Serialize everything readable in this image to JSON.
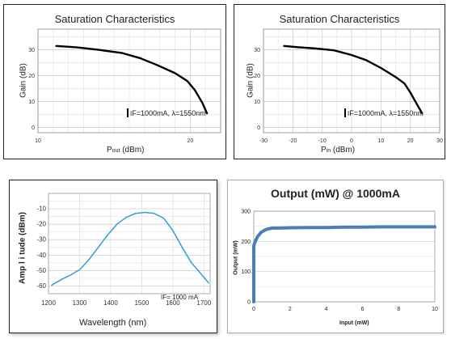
{
  "chart_data": [
    {
      "type": "line",
      "title": "Saturation Characteristics",
      "xlabel": "Pout (dBm)",
      "xlabel_main": "P",
      "xlabel_sub": "out",
      "xlabel_unit": "(dBm)",
      "ylabel": "Gain (dB)",
      "annotation": "IF=1000mA, λ=1550nm",
      "annotation_sub": "F",
      "annotation_rest": "=1000mA, λ=1550nm",
      "xlim": [
        10,
        22
      ],
      "ylim": [
        -2,
        38
      ],
      "x_ticks": [
        10,
        20
      ],
      "y_ticks": [
        0,
        10,
        20,
        30
      ],
      "grid": true,
      "series": [
        {
          "x": [
            11.2,
            12.5,
            14,
            15.5,
            16.7,
            17.8,
            19,
            19.8,
            20.3,
            20.8,
            21.1
          ],
          "y": [
            31.5,
            31,
            30,
            28.8,
            26.8,
            24.2,
            21,
            18,
            14.5,
            9.5,
            5.5
          ]
        }
      ]
    },
    {
      "type": "line",
      "title": "Saturation Characteristics",
      "xlabel": "Pin (dBm)",
      "xlabel_main": "P",
      "xlabel_sub": "in",
      "xlabel_unit": "(dBm)",
      "ylabel": "Gain (dB)",
      "annotation": "IF=1000mA, λ=1550nm",
      "annotation_sub": "F",
      "annotation_rest": "=1000mA, λ=1550nm",
      "xlim": [
        -30,
        30
      ],
      "ylim": [
        -2,
        38
      ],
      "x_ticks": [
        -30,
        -20,
        -10,
        0,
        10,
        20,
        30
      ],
      "y_ticks": [
        0,
        10,
        20,
        30
      ],
      "grid": true,
      "series": [
        {
          "x": [
            -23,
            -18,
            -12,
            -6,
            0,
            5,
            10,
            15,
            18,
            20,
            22,
            24
          ],
          "y": [
            31.5,
            31,
            30.5,
            29.8,
            28,
            26,
            23,
            19.5,
            17,
            13.5,
            9.5,
            5.5
          ]
        }
      ]
    },
    {
      "type": "line",
      "title": "",
      "xlabel": "Wavelength (nm)",
      "ylabel": "Amp l i tude (dBm)",
      "annotation": "IF= 1000 mA",
      "annotation_sub": "F",
      "annotation_rest": "= 1000 mA",
      "xlim": [
        1200,
        1720
      ],
      "ylim": [
        -65,
        0
      ],
      "x_ticks": [
        1200,
        1300,
        1400,
        1500,
        1600,
        1700
      ],
      "y_ticks": [
        -60,
        -50,
        -40,
        -30,
        -20,
        -10
      ],
      "grid": true,
      "color": "#2f9fd6",
      "series": [
        {
          "x": [
            1210,
            1240,
            1270,
            1300,
            1330,
            1360,
            1390,
            1420,
            1450,
            1480,
            1510,
            1540,
            1570,
            1600,
            1630,
            1660,
            1690,
            1715
          ],
          "y": [
            -59.5,
            -56,
            -53,
            -49.5,
            -43,
            -35,
            -27,
            -20,
            -15.5,
            -13,
            -12.3,
            -13,
            -16,
            -24,
            -35,
            -45,
            -52,
            -58
          ]
        }
      ]
    },
    {
      "type": "line",
      "title": "Output (mW) @ 1000mA",
      "xlabel": "Input (mW)",
      "ylabel": "Output (mW)",
      "xlim": [
        0,
        10
      ],
      "ylim": [
        0,
        300
      ],
      "x_ticks": [
        0,
        2,
        4,
        6,
        8,
        10
      ],
      "y_ticks": [
        0,
        100,
        200,
        300
      ],
      "grid": true,
      "color": "#4a7fb5",
      "series": [
        {
          "x": [
            0,
            0,
            0.05,
            0.2,
            0.4,
            0.7,
            1.0,
            1.5,
            2,
            3,
            4,
            5,
            6,
            7,
            8,
            9,
            10
          ],
          "y": [
            0,
            185,
            195,
            215,
            230,
            240,
            244,
            244,
            245,
            246,
            246,
            247,
            247,
            248,
            248,
            248,
            248
          ]
        }
      ]
    }
  ]
}
